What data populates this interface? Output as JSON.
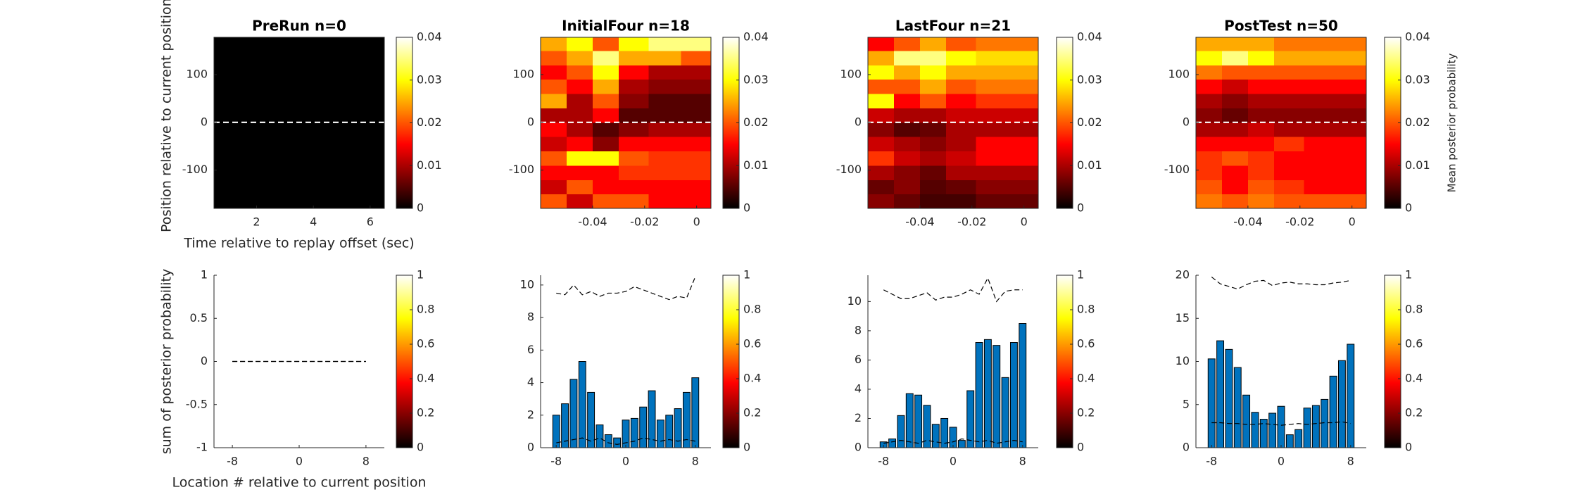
{
  "chart_data": [
    {
      "type": "heatmap",
      "title": "PreRun n=0",
      "ylabel": "Position relative to current position (de",
      "xlabel": "Time relative to replay offset (sec)",
      "x": [
        1,
        2,
        3,
        4,
        5,
        6
      ],
      "y": [
        -165,
        -135,
        -105,
        -75,
        -45,
        -15,
        15,
        45,
        75,
        105,
        135,
        165
      ],
      "z": [
        [
          0,
          0,
          0,
          0,
          0,
          0
        ],
        [
          0,
          0,
          0,
          0,
          0,
          0
        ],
        [
          0,
          0,
          0,
          0,
          0,
          0
        ],
        [
          0,
          0,
          0,
          0,
          0,
          0
        ],
        [
          0,
          0,
          0,
          0,
          0,
          0
        ],
        [
          0,
          0,
          0,
          0,
          0,
          0
        ],
        [
          0,
          0,
          0,
          0,
          0,
          0
        ],
        [
          0,
          0,
          0,
          0,
          0,
          0
        ],
        [
          0,
          0,
          0,
          0,
          0,
          0
        ],
        [
          0,
          0,
          0,
          0,
          0,
          0
        ],
        [
          0,
          0,
          0,
          0,
          0,
          0
        ],
        [
          0,
          0,
          0,
          0,
          0,
          0
        ]
      ],
      "xlim": [
        0.5,
        6.5
      ],
      "ylim": [
        -180,
        178
      ],
      "xticks": [
        2,
        4,
        6
      ],
      "yticks": [
        -100,
        0,
        100
      ],
      "hline": 0,
      "colorbar": {
        "lim": [
          0,
          0.04
        ],
        "ticks": [
          0,
          0.01,
          0.02,
          0.03,
          0.04
        ]
      }
    },
    {
      "type": "heatmap",
      "title": "InitialFour n=18",
      "x": [
        -0.055,
        -0.045,
        -0.035,
        -0.025,
        -0.012,
        0
      ],
      "y": [
        -165,
        -135,
        -105,
        -75,
        -45,
        -15,
        15,
        45,
        75,
        105,
        135,
        165
      ],
      "z": [
        [
          0.02,
          0.012,
          0.02,
          0.02,
          0.015,
          0.015
        ],
        [
          0.012,
          0.02,
          0.015,
          0.015,
          0.015,
          0.015
        ],
        [
          0.015,
          0.015,
          0.015,
          0.018,
          0.018,
          0.018
        ],
        [
          0.02,
          0.03,
          0.03,
          0.02,
          0.018,
          0.018
        ],
        [
          0.012,
          0.015,
          0.008,
          0.015,
          0.015,
          0.015
        ],
        [
          0.015,
          0.01,
          0.005,
          0.008,
          0.01,
          0.01
        ],
        [
          0.01,
          0.01,
          0.015,
          0.005,
          0.005,
          0.005
        ],
        [
          0.025,
          0.01,
          0.02,
          0.008,
          0.005,
          0.005
        ],
        [
          0.02,
          0.015,
          0.025,
          0.01,
          0.008,
          0.008
        ],
        [
          0.015,
          0.02,
          0.03,
          0.015,
          0.01,
          0.01
        ],
        [
          0.02,
          0.025,
          0.035,
          0.025,
          0.025,
          0.02
        ],
        [
          0.025,
          0.03,
          0.02,
          0.03,
          0.035,
          0.035
        ]
      ],
      "xlim": [
        -0.06,
        0.0055
      ],
      "ylim": [
        -180,
        178
      ],
      "xticks": [
        -0.04,
        -0.02,
        0
      ],
      "yticks": [
        -100,
        0,
        100
      ],
      "hline": 0,
      "colorbar": {
        "lim": [
          0,
          0.04
        ],
        "ticks": [
          0,
          0.01,
          0.02,
          0.03,
          0.04
        ]
      }
    },
    {
      "type": "heatmap",
      "title": "LastFour n=21",
      "x": [
        -0.055,
        -0.045,
        -0.035,
        -0.025,
        -0.012,
        0
      ],
      "y": [
        -165,
        -135,
        -105,
        -75,
        -45,
        -15,
        15,
        45,
        75,
        105,
        135,
        165
      ],
      "z": [
        [
          0.008,
          0.006,
          0.004,
          0.004,
          0.006,
          0.006
        ],
        [
          0.006,
          0.008,
          0.005,
          0.006,
          0.008,
          0.008
        ],
        [
          0.01,
          0.008,
          0.006,
          0.01,
          0.01,
          0.01
        ],
        [
          0.018,
          0.012,
          0.01,
          0.012,
          0.015,
          0.015
        ],
        [
          0.012,
          0.01,
          0.008,
          0.01,
          0.015,
          0.015
        ],
        [
          0.008,
          0.005,
          0.006,
          0.01,
          0.01,
          0.01
        ],
        [
          0.012,
          0.01,
          0.01,
          0.012,
          0.012,
          0.012
        ],
        [
          0.03,
          0.015,
          0.02,
          0.015,
          0.018,
          0.018
        ],
        [
          0.02,
          0.02,
          0.025,
          0.02,
          0.022,
          0.022
        ],
        [
          0.03,
          0.025,
          0.03,
          0.025,
          0.025,
          0.025
        ],
        [
          0.025,
          0.035,
          0.035,
          0.03,
          0.028,
          0.028
        ],
        [
          0.015,
          0.02,
          0.025,
          0.02,
          0.022,
          0.022
        ]
      ],
      "xlim": [
        -0.06,
        0.0055
      ],
      "ylim": [
        -180,
        178
      ],
      "xticks": [
        -0.04,
        -0.02,
        0
      ],
      "yticks": [
        -100,
        0,
        100
      ],
      "hline": 0,
      "colorbar": {
        "lim": [
          0,
          0.04
        ],
        "ticks": [
          0,
          0.01,
          0.02,
          0.03,
          0.04
        ]
      }
    },
    {
      "type": "heatmap",
      "title": "PostTest n=50",
      "x": [
        -0.055,
        -0.045,
        -0.035,
        -0.025,
        -0.012,
        0
      ],
      "y": [
        -165,
        -135,
        -105,
        -75,
        -45,
        -15,
        15,
        45,
        75,
        105,
        135,
        165
      ],
      "z": [
        [
          0.022,
          0.02,
          0.022,
          0.02,
          0.02,
          0.02
        ],
        [
          0.02,
          0.015,
          0.02,
          0.018,
          0.015,
          0.015
        ],
        [
          0.018,
          0.015,
          0.018,
          0.015,
          0.015,
          0.015
        ],
        [
          0.018,
          0.02,
          0.018,
          0.015,
          0.015,
          0.015
        ],
        [
          0.015,
          0.015,
          0.015,
          0.018,
          0.015,
          0.015
        ],
        [
          0.01,
          0.01,
          0.012,
          0.01,
          0.01,
          0.01
        ],
        [
          0.008,
          0.006,
          0.008,
          0.008,
          0.008,
          0.008
        ],
        [
          0.01,
          0.008,
          0.01,
          0.01,
          0.01,
          0.01
        ],
        [
          0.015,
          0.012,
          0.015,
          0.015,
          0.015,
          0.015
        ],
        [
          0.022,
          0.02,
          0.02,
          0.02,
          0.02,
          0.02
        ],
        [
          0.03,
          0.035,
          0.03,
          0.025,
          0.025,
          0.025
        ],
        [
          0.025,
          0.025,
          0.025,
          0.022,
          0.022,
          0.022
        ]
      ],
      "xlim": [
        -0.06,
        0.0055
      ],
      "ylim": [
        -180,
        178
      ],
      "xticks": [
        -0.04,
        -0.02,
        0
      ],
      "yticks": [
        -100,
        0,
        100
      ],
      "hline": 0,
      "colorbar": {
        "lim": [
          0,
          0.04
        ],
        "ticks": [
          0,
          0.01,
          0.02,
          0.03,
          0.04
        ],
        "label": "Mean posterior probability"
      }
    },
    {
      "type": "bar",
      "ylabel": "sum of posterior probability",
      "xlabel": "Location # relative to current position",
      "x": [
        -8,
        -7,
        -6,
        -5,
        -4,
        -3,
        -2,
        -1,
        0,
        1,
        2,
        3,
        4,
        5,
        6,
        7,
        8
      ],
      "series": [
        {
          "type": "bar",
          "color": "#0072bd",
          "values": [
            0,
            0,
            0,
            0,
            0,
            0,
            0,
            0,
            0,
            0,
            0,
            0,
            0,
            0,
            0,
            0,
            0
          ]
        },
        {
          "type": "line",
          "dash": true,
          "color": "#000000",
          "values": [
            0,
            0,
            0,
            0,
            0,
            0,
            0,
            0,
            0,
            0,
            0,
            0,
            0,
            0,
            0,
            0,
            0
          ]
        },
        {
          "type": "line",
          "dash": true,
          "color": "#000000",
          "values": [
            0,
            0,
            0,
            0,
            0,
            0,
            0,
            0,
            0,
            0,
            0,
            0,
            0,
            0,
            0,
            0,
            0
          ]
        }
      ],
      "xlim": [
        -10.2,
        10.2
      ],
      "ylim": [
        -1,
        1
      ],
      "xticks": [
        -8,
        0,
        8
      ],
      "yticks": [
        -1,
        -0.5,
        0,
        0.5,
        1
      ],
      "colorbar": {
        "lim": [
          0,
          1
        ],
        "ticks": [
          0,
          0.2,
          0.4,
          0.6,
          0.8,
          1
        ]
      }
    },
    {
      "type": "bar",
      "x": [
        -8,
        -7,
        -6,
        -5,
        -4,
        -3,
        -2,
        -1,
        0,
        1,
        2,
        3,
        4,
        5,
        6,
        7,
        8
      ],
      "series": [
        {
          "type": "bar",
          "color": "#0072bd",
          "values": [
            2.0,
            2.7,
            4.2,
            5.3,
            3.4,
            1.4,
            0.8,
            0.6,
            1.7,
            1.8,
            2.5,
            3.5,
            1.7,
            2.0,
            2.4,
            3.4,
            4.3
          ]
        },
        {
          "type": "line",
          "dash": true,
          "color": "#000000",
          "values": [
            9.5,
            9.4,
            10.0,
            9.4,
            9.6,
            9.3,
            9.5,
            9.5,
            9.6,
            9.9,
            9.7,
            9.5,
            9.3,
            9.1,
            9.3,
            9.2,
            10.5
          ]
        },
        {
          "type": "line",
          "dash": true,
          "color": "#000000",
          "values": [
            0.3,
            0.4,
            0.5,
            0.6,
            0.4,
            0.6,
            0.3,
            0.2,
            0.3,
            0.4,
            0.6,
            0.5,
            0.4,
            0.5,
            0.4,
            0.5,
            0.4
          ]
        }
      ],
      "xlim": [
        -9.8,
        9.8
      ],
      "ylim": [
        0,
        10.6
      ],
      "xticks": [
        -8,
        0,
        8
      ],
      "yticks": [
        0,
        2,
        4,
        6,
        8,
        10
      ],
      "colorbar": {
        "lim": [
          0,
          1
        ],
        "ticks": [
          0,
          0.2,
          0.4,
          0.6,
          0.8,
          1
        ]
      }
    },
    {
      "type": "bar",
      "x": [
        -8,
        -7,
        -6,
        -5,
        -4,
        -3,
        -2,
        -1,
        0,
        1,
        2,
        3,
        4,
        5,
        6,
        7,
        8
      ],
      "series": [
        {
          "type": "bar",
          "color": "#0072bd",
          "values": [
            0.4,
            0.6,
            2.2,
            3.7,
            3.6,
            2.9,
            1.6,
            2.0,
            1.4,
            0.5,
            3.9,
            7.2,
            7.4,
            7.0,
            4.8,
            7.2,
            8.5
          ]
        },
        {
          "type": "line",
          "dash": true,
          "color": "#000000",
          "values": [
            10.8,
            10.5,
            10.2,
            10.2,
            10.4,
            10.6,
            10.1,
            10.3,
            10.3,
            10.5,
            10.8,
            10.5,
            11.6,
            10.0,
            10.7,
            10.8,
            10.8
          ]
        },
        {
          "type": "line",
          "dash": true,
          "color": "#000000",
          "values": [
            0.3,
            0.4,
            0.5,
            0.4,
            0.3,
            0.5,
            0.4,
            0.3,
            0.4,
            0.6,
            0.5,
            0.4,
            0.5,
            0.3,
            0.4,
            0.5,
            0.4
          ]
        }
      ],
      "xlim": [
        -9.8,
        9.8
      ],
      "ylim": [
        0,
        11.8
      ],
      "xticks": [
        -8,
        0,
        8
      ],
      "yticks": [
        0,
        2,
        4,
        6,
        8,
        10
      ],
      "colorbar": {
        "lim": [
          0,
          1
        ],
        "ticks": [
          0,
          0.2,
          0.4,
          0.6,
          0.8,
          1
        ]
      }
    },
    {
      "type": "bar",
      "x": [
        -8,
        -7,
        -6,
        -5,
        -4,
        -3,
        -2,
        -1,
        0,
        1,
        2,
        3,
        4,
        5,
        6,
        7,
        8
      ],
      "series": [
        {
          "type": "bar",
          "color": "#0072bd",
          "values": [
            10.3,
            12.4,
            11.4,
            9.3,
            6.1,
            4.1,
            3.3,
            4.0,
            4.8,
            1.5,
            2.1,
            4.6,
            4.9,
            5.6,
            8.3,
            10.1,
            12.0
          ]
        },
        {
          "type": "line",
          "dash": true,
          "color": "#000000",
          "values": [
            19.8,
            19.0,
            18.7,
            18.4,
            18.9,
            19.3,
            19.4,
            18.8,
            19.1,
            19.2,
            19.0,
            19.0,
            18.9,
            18.9,
            19.1,
            19.2,
            19.4
          ]
        },
        {
          "type": "line",
          "dash": true,
          "color": "#000000",
          "values": [
            2.9,
            2.9,
            2.8,
            2.8,
            2.7,
            2.7,
            2.8,
            2.7,
            2.6,
            2.7,
            2.8,
            2.7,
            2.8,
            2.9,
            2.9,
            3.0,
            2.8
          ]
        }
      ],
      "xlim": [
        -9.8,
        9.8
      ],
      "ylim": [
        0,
        20
      ],
      "xticks": [
        -8,
        0,
        8
      ],
      "yticks": [
        0,
        5,
        10,
        15,
        20
      ],
      "colorbar": {
        "lim": [
          0,
          1
        ],
        "ticks": [
          0,
          0.2,
          0.4,
          0.6,
          0.8,
          1
        ]
      }
    }
  ]
}
